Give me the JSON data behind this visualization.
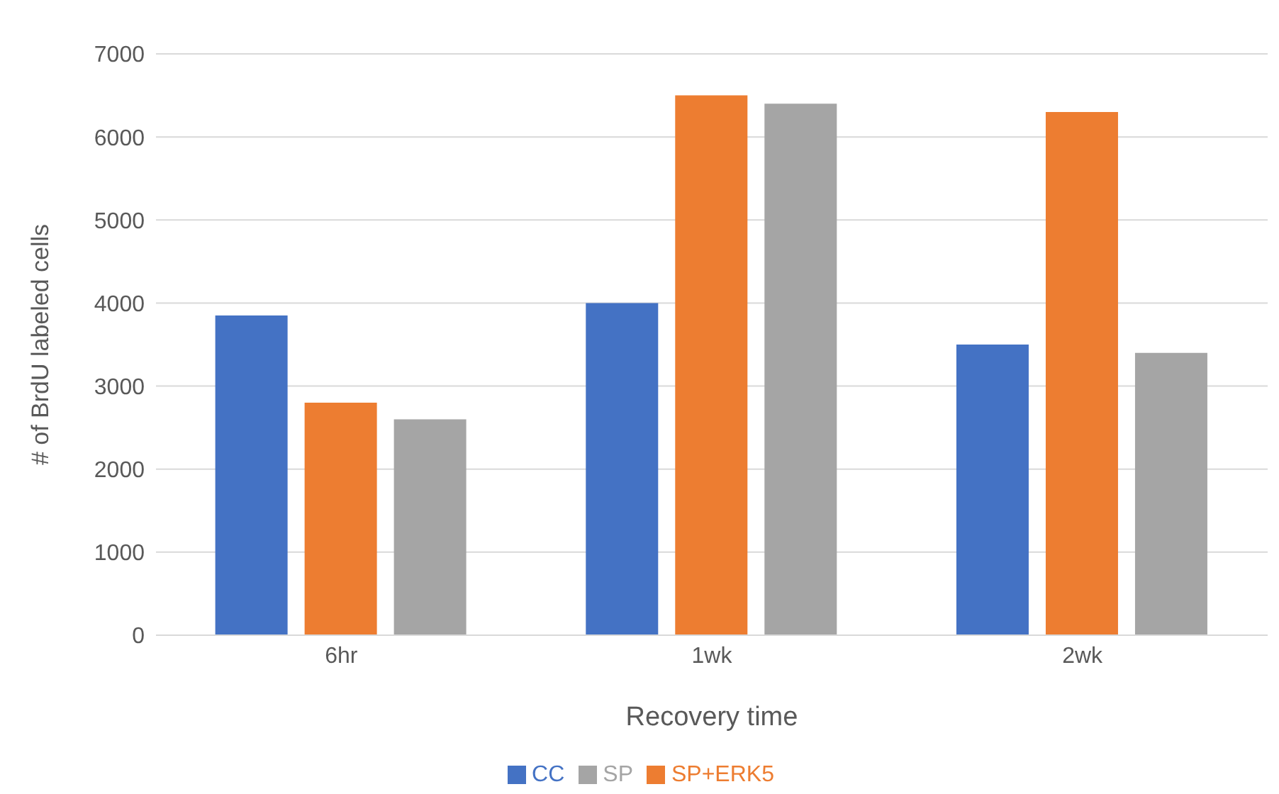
{
  "chart_data": {
    "type": "bar",
    "xlabel": "Recovery time",
    "ylabel": "# of BrdU labeled cells",
    "categories": [
      "6hr",
      "1wk",
      "2wk"
    ],
    "series": [
      {
        "name": "CC",
        "color": "#4472c4",
        "values": [
          3850,
          4000,
          3500
        ]
      },
      {
        "name": "SP+ERK5",
        "color": "#ed7d31",
        "values": [
          2800,
          6500,
          6300
        ]
      },
      {
        "name": "SP",
        "color": "#a5a5a5",
        "values": [
          2600,
          6400,
          3400
        ]
      }
    ],
    "ylim": [
      0,
      7000
    ],
    "yticks": [
      0,
      1000,
      2000,
      3000,
      4000,
      5000,
      6000,
      7000
    ],
    "grid": "y",
    "legend": "bottom"
  }
}
